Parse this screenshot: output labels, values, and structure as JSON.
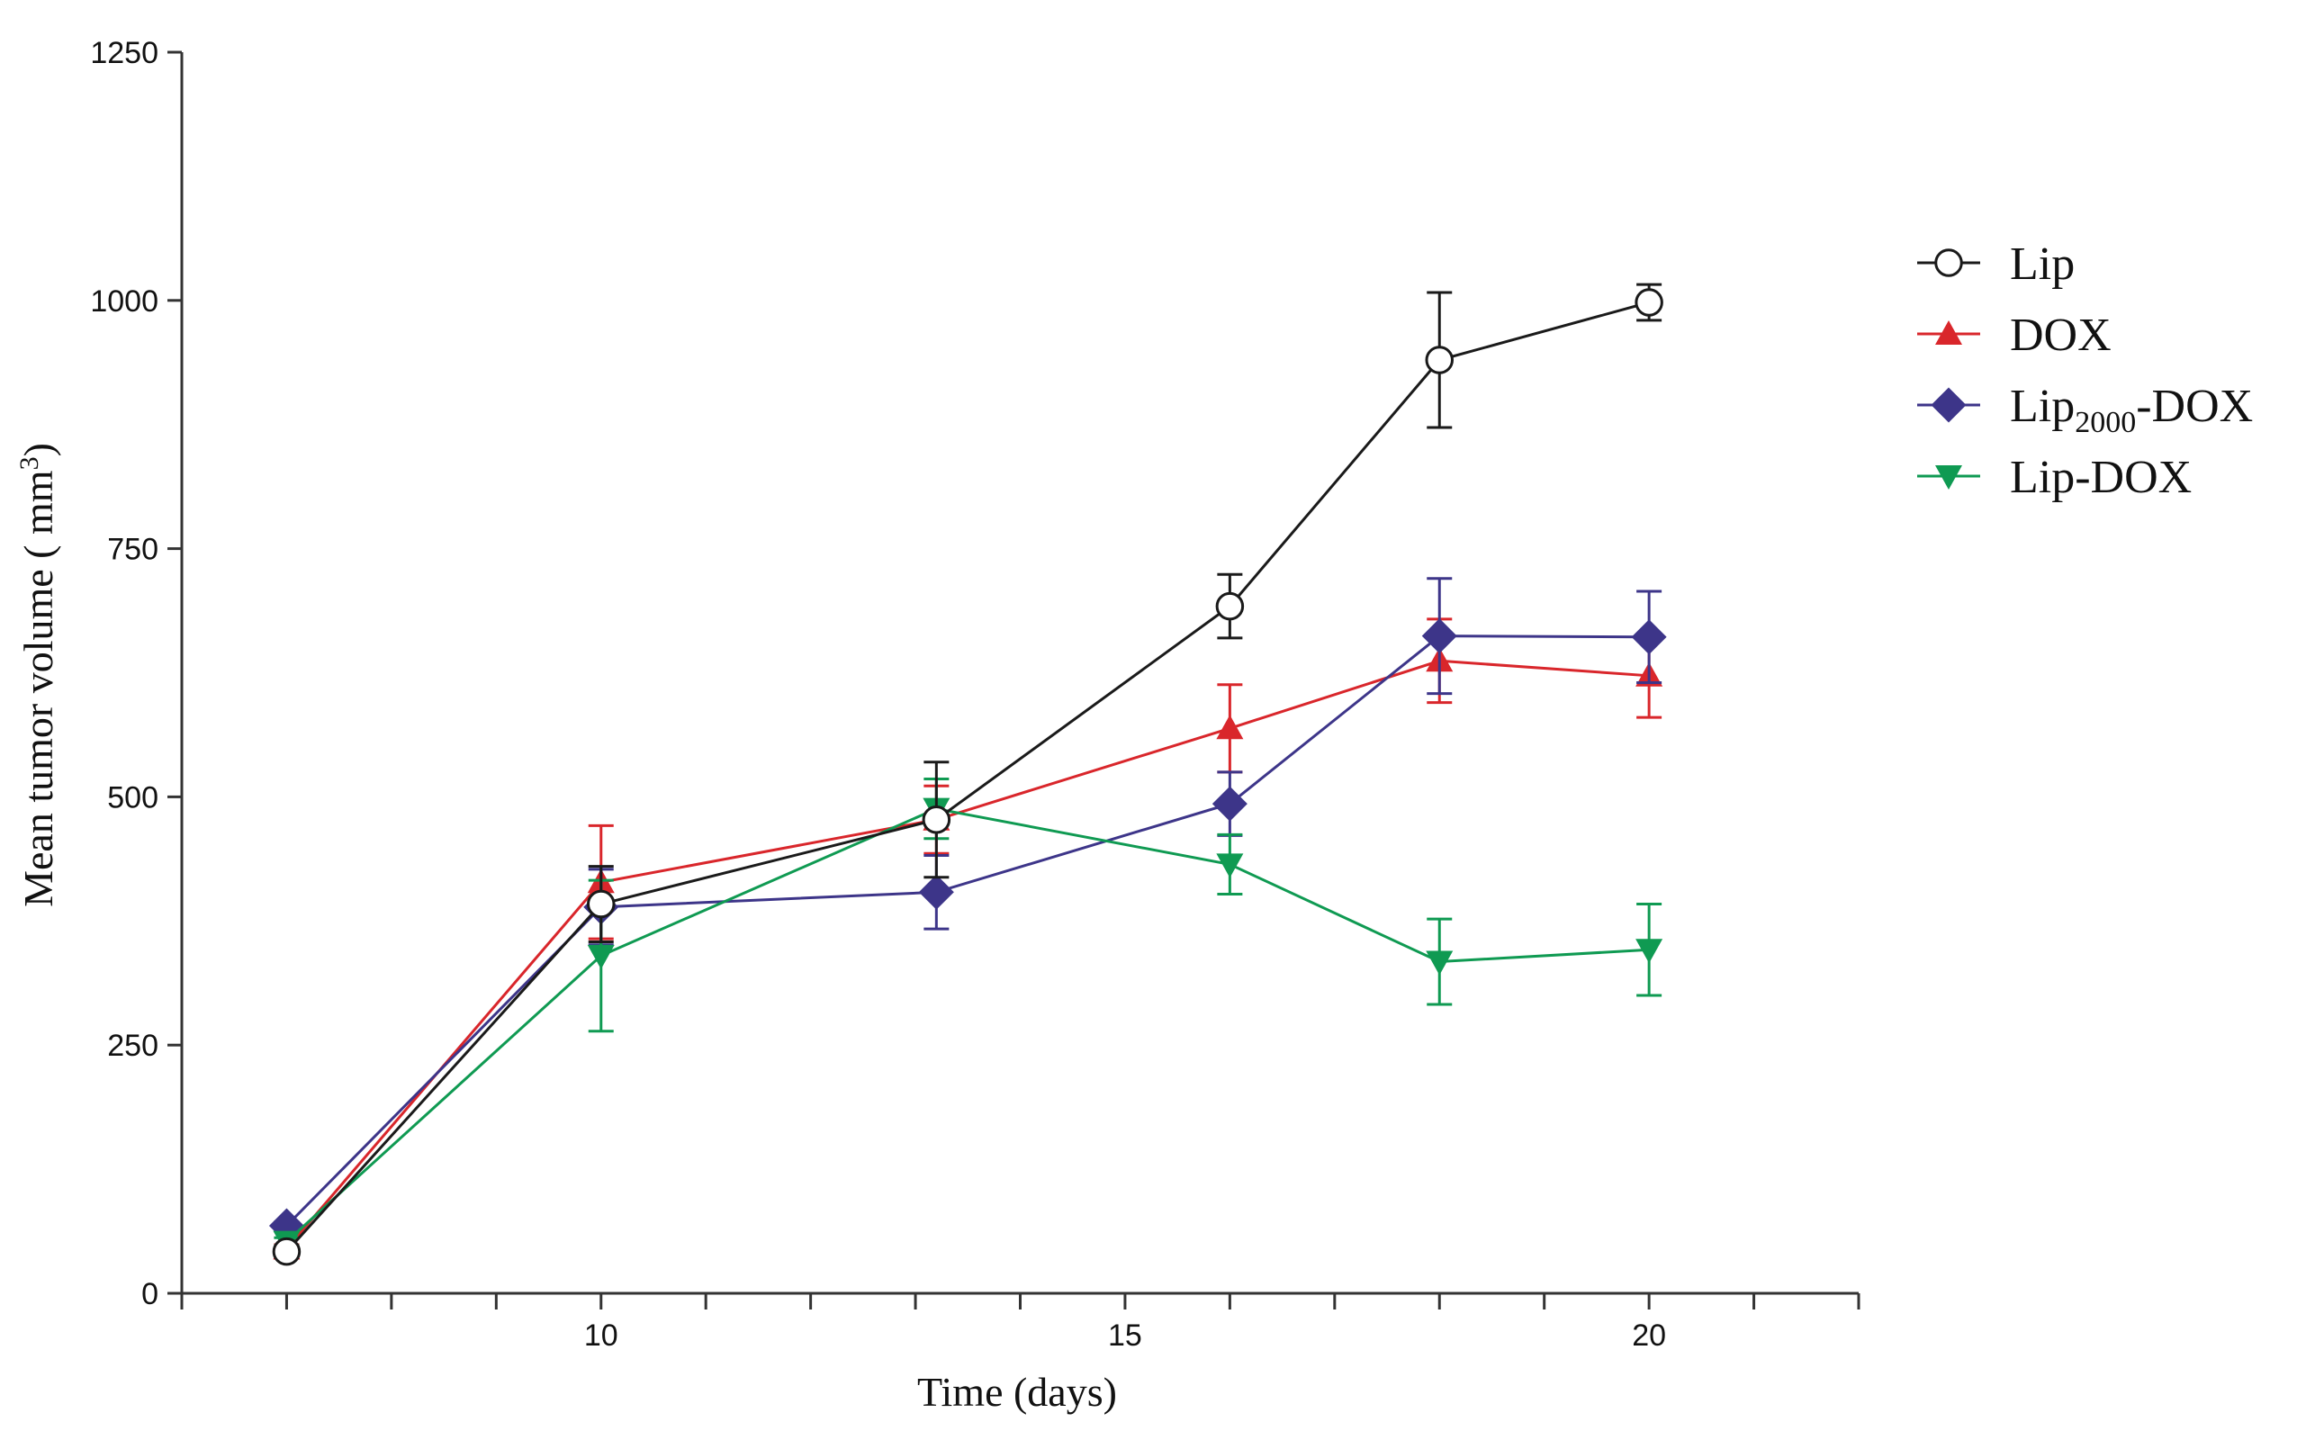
{
  "chart_data": {
    "type": "line",
    "title": "",
    "xlabel": "Time (days)",
    "ylabel": "Mean tumor volume ( mm",
    "ylabel_superscript": "3",
    "ylabel_close": ")",
    "xlim": [
      6,
      22
    ],
    "ylim": [
      0,
      1250
    ],
    "xticks": [
      10,
      15,
      20
    ],
    "xticks_minor": [
      6,
      7,
      8,
      9,
      11,
      12,
      13,
      14,
      16,
      17,
      18,
      19,
      21,
      22
    ],
    "yticks": [
      0,
      250,
      500,
      750,
      1000,
      1250
    ],
    "legend_position": "right",
    "series": [
      {
        "name": "Lip",
        "color": "#1a1a1a",
        "marker": "open-circle",
        "x": [
          7,
          10,
          13.2,
          16,
          18,
          20
        ],
        "y": [
          42,
          392,
          477,
          692,
          940,
          998
        ],
        "err": [
          4,
          38,
          58,
          32,
          68,
          18
        ]
      },
      {
        "name": "DOX",
        "color": "#d9262b",
        "marker": "triangle-up",
        "x": [
          7,
          10,
          13.2,
          16,
          18,
          20
        ],
        "y": [
          45,
          414,
          477,
          569,
          637,
          622
        ],
        "err": [
          4,
          57,
          34,
          44,
          42,
          42
        ]
      },
      {
        "name": "Lip2000-DOX",
        "name_parts": {
          "base": "Lip",
          "sub": "2000",
          "rest": "-DOX"
        },
        "color": "#3d3589",
        "marker": "diamond",
        "x": [
          7,
          10,
          13.2,
          16,
          18,
          20
        ],
        "y": [
          68,
          389,
          404,
          493,
          662,
          661
        ],
        "err": [
          4,
          38,
          37,
          32,
          58,
          46
        ]
      },
      {
        "name": "Lip-DOX",
        "color": "#0f9a52",
        "marker": "triangle-down",
        "x": [
          7,
          10,
          13.2,
          16,
          18,
          20
        ],
        "y": [
          52,
          340,
          488,
          432,
          334,
          346
        ],
        "err": [
          4,
          76,
          30,
          30,
          43,
          46
        ]
      }
    ]
  }
}
